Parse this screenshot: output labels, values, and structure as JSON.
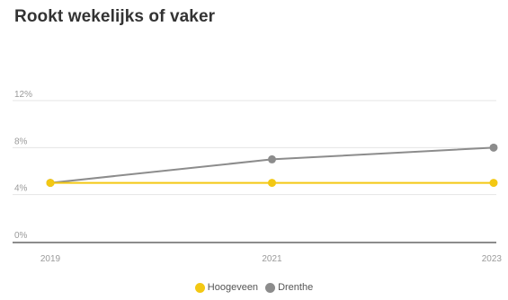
{
  "chart_data": {
    "type": "line",
    "title": "Rookt wekelijks of vaker",
    "x": [
      "2019",
      "2021",
      "2023"
    ],
    "ylim": [
      0,
      12
    ],
    "yticks": [
      "0%",
      "4%",
      "8%",
      "12%"
    ],
    "ytick_values": [
      0,
      4,
      8,
      12
    ],
    "grid": true,
    "legend_position": "bottom-center",
    "series": [
      {
        "name": "Hoogeveen",
        "color": "#f3c813",
        "values": [
          5,
          5,
          5
        ]
      },
      {
        "name": "Drenthe",
        "color": "#8c8c8c",
        "values": [
          5,
          7,
          8
        ]
      }
    ]
  }
}
